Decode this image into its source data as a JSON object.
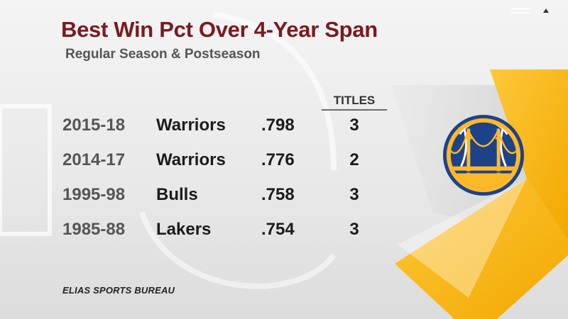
{
  "header": {
    "title": "Best Win Pct Over 4-Year Span",
    "subtitle": "Regular Season & Postseason"
  },
  "table": {
    "columns": [
      "",
      "",
      "",
      "TITLES"
    ],
    "rows": [
      {
        "years": "2015-18",
        "team": "Warriors",
        "pct": ".798",
        "titles": "3"
      },
      {
        "years": "2014-17",
        "team": "Warriors",
        "pct": ".776",
        "titles": "2"
      },
      {
        "years": "1995-98",
        "team": "Bulls",
        "pct": ".758",
        "titles": "3"
      },
      {
        "years": "1985-88",
        "team": "Lakers",
        "pct": ".754",
        "titles": "3"
      }
    ]
  },
  "footer": {
    "source": "ELIAS SPORTS BUREAU"
  },
  "logo": {
    "icon": "golden-state-warriors-logo-icon"
  },
  "colors": {
    "title": "#7a1a1f",
    "accent_yellow": "#fdb927",
    "warriors_blue": "#1d428a"
  }
}
